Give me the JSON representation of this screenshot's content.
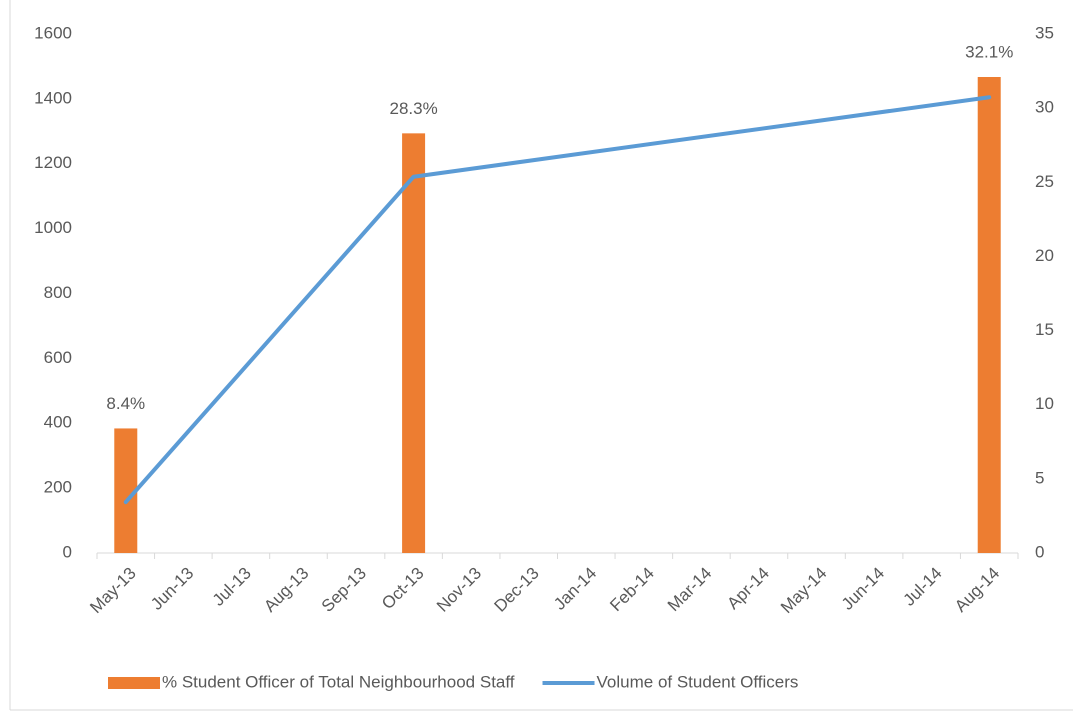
{
  "chart_data": {
    "type": "bar_line",
    "xticks": [
      "May-13",
      "Jun-13",
      "Jul-13",
      "Aug-13",
      "Sep-13",
      "Oct-13",
      "Nov-13",
      "Dec-13",
      "Jan-14",
      "Feb-14",
      "Mar-14",
      "Apr-14",
      "May-14",
      "Jun-14",
      "Jul-14",
      "Aug-14"
    ],
    "x": [
      "May-13",
      "Oct-13",
      "Aug-14"
    ],
    "series": [
      {
        "name": "% Student Officer of Total Neighbourhood Staff",
        "type": "bar",
        "axis": "y2",
        "color": "#ed7d31",
        "values": [
          8.4,
          28.3,
          32.1
        ],
        "value_labels": [
          "8.4%",
          "28.3%",
          "32.1%"
        ]
      },
      {
        "name": "Volume of Student Officers",
        "type": "line",
        "axis": "y",
        "color": "#5b9bd5",
        "values": [
          157,
          1160,
          1405
        ]
      }
    ],
    "ylim": [
      0,
      1600
    ],
    "yticks": [
      0,
      200,
      400,
      600,
      800,
      1000,
      1200,
      1400,
      1600
    ],
    "y2lim": [
      0,
      35
    ],
    "y2ticks": [
      0,
      5,
      10,
      15,
      20,
      25,
      30,
      35
    ],
    "legend": "bottom"
  }
}
